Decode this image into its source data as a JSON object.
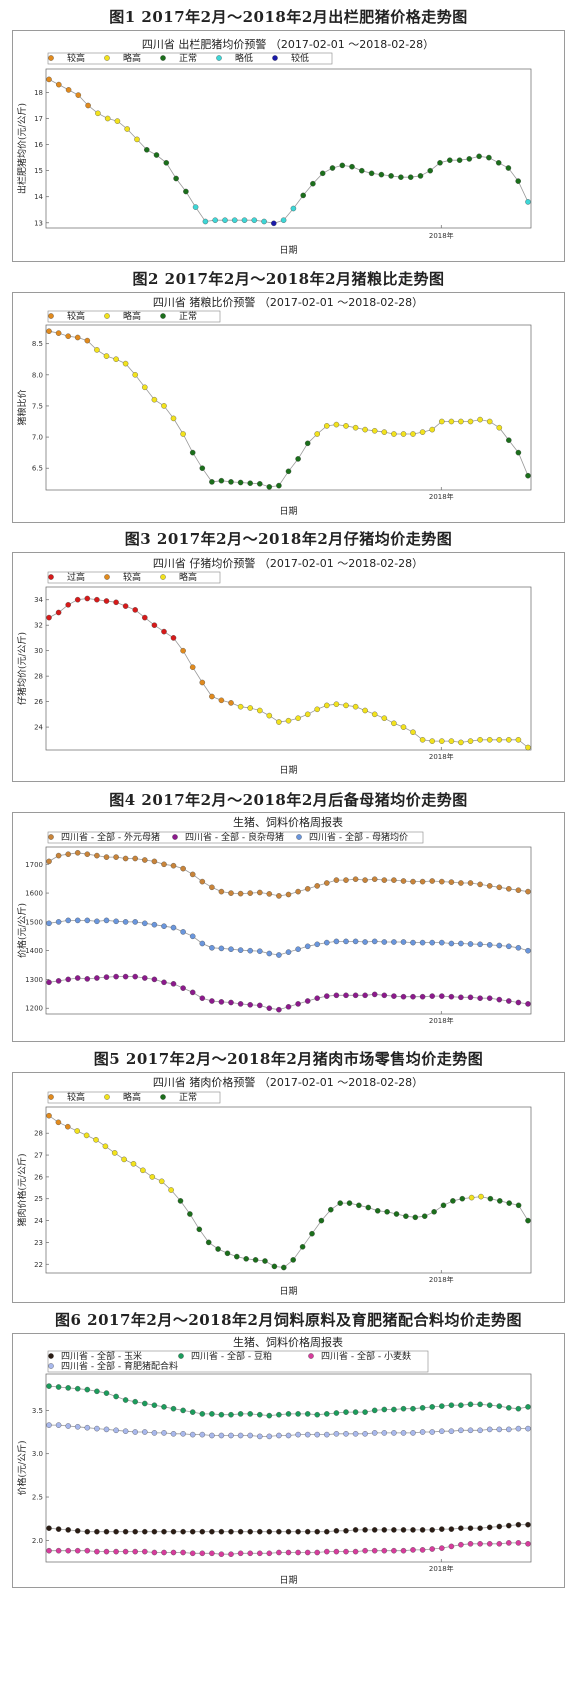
{
  "figures": [
    {
      "label": "图1   2017年2月～2018年2月出栏肥猪价格走势图"
    },
    {
      "label": "图2   2017年2月～2018年2月猪粮比走势图"
    },
    {
      "label": "图3   2017年2月～2018年2月仔猪均价走势图"
    },
    {
      "label": "图4   2017年2月～2018年2月后备母猪均价走势图"
    },
    {
      "label": "图5   2017年2月～2018年2月猪肉市场零售均价走势图"
    },
    {
      "label": "图6   2017年2月～2018年2月饲料原料及育肥猪配合料均价走势图"
    }
  ],
  "colors": {
    "较高": "#e08a1e",
    "略高": "#f2e21e",
    "正常": "#1b6e1b",
    "略低": "#3ed6d6",
    "较低": "#1a1aa8",
    "过高": "#d61a1a"
  },
  "chart_data": [
    {
      "type": "line",
      "title": "四川省 出栏肥猪均价预警 （2017-02-01 ～2018-02-28）",
      "xlabel": "日期",
      "ylabel": "出栏肥猪均价(元/公斤)",
      "x_tick_label": "2018年",
      "ylim": [
        12.8,
        18.9
      ],
      "yticks": [
        13,
        14,
        15,
        16,
        17,
        18
      ],
      "legend": [
        {
          "name": "较高",
          "color": "#e08a1e"
        },
        {
          "name": "略高",
          "color": "#f2e21e"
        },
        {
          "name": "正常",
          "color": "#1b6e1b"
        },
        {
          "name": "略低",
          "color": "#3ed6d6"
        },
        {
          "name": "较低",
          "color": "#1a1aa8"
        }
      ],
      "values": [
        18.5,
        18.3,
        18.1,
        17.9,
        17.5,
        17.2,
        17.0,
        16.9,
        16.6,
        16.2,
        15.8,
        15.6,
        15.3,
        14.7,
        14.2,
        13.6,
        13.05,
        13.1,
        13.1,
        13.1,
        13.1,
        13.1,
        13.05,
        12.98,
        13.1,
        13.55,
        14.05,
        14.5,
        14.9,
        15.1,
        15.2,
        15.15,
        15.0,
        14.9,
        14.85,
        14.8,
        14.75,
        14.75,
        14.8,
        15.0,
        15.3,
        15.4,
        15.4,
        15.45,
        15.55,
        15.5,
        15.3,
        15.1,
        14.6,
        13.8
      ],
      "categories": [
        "较高",
        "较高",
        "较高",
        "较高",
        "较高",
        "略高",
        "略高",
        "略高",
        "略高",
        "略高",
        "正常",
        "正常",
        "正常",
        "正常",
        "正常",
        "略低",
        "略低",
        "略低",
        "略低",
        "略低",
        "略低",
        "略低",
        "略低",
        "较低",
        "略低",
        "略低",
        "正常",
        "正常",
        "正常",
        "正常",
        "正常",
        "正常",
        "正常",
        "正常",
        "正常",
        "正常",
        "正常",
        "正常",
        "正常",
        "正常",
        "正常",
        "正常",
        "正常",
        "正常",
        "正常",
        "正常",
        "正常",
        "正常",
        "正常",
        "略低"
      ]
    },
    {
      "type": "line",
      "title": "四川省 猪粮比价预警 （2017-02-01 ～2018-02-28）",
      "xlabel": "日期",
      "ylabel": "猪粮比价",
      "x_tick_label": "2018年",
      "ylim": [
        6.15,
        8.8
      ],
      "yticks": [
        6.5,
        7.0,
        7.5,
        8.0,
        8.5
      ],
      "legend": [
        {
          "name": "较高",
          "color": "#e08a1e"
        },
        {
          "name": "略高",
          "color": "#f2e21e"
        },
        {
          "name": "正常",
          "color": "#1b6e1b"
        }
      ],
      "values": [
        8.7,
        8.67,
        8.62,
        8.6,
        8.55,
        8.4,
        8.3,
        8.25,
        8.18,
        8.0,
        7.8,
        7.6,
        7.5,
        7.3,
        7.05,
        6.75,
        6.5,
        6.28,
        6.3,
        6.28,
        6.27,
        6.26,
        6.25,
        6.2,
        6.22,
        6.45,
        6.65,
        6.9,
        7.05,
        7.18,
        7.2,
        7.18,
        7.15,
        7.12,
        7.1,
        7.08,
        7.05,
        7.05,
        7.05,
        7.08,
        7.12,
        7.25,
        7.25,
        7.25,
        7.25,
        7.28,
        7.25,
        7.15,
        6.95,
        6.75,
        6.38
      ],
      "categories": [
        "较高",
        "较高",
        "较高",
        "较高",
        "较高",
        "略高",
        "略高",
        "略高",
        "略高",
        "略高",
        "略高",
        "略高",
        "略高",
        "略高",
        "略高",
        "正常",
        "正常",
        "正常",
        "正常",
        "正常",
        "正常",
        "正常",
        "正常",
        "正常",
        "正常",
        "正常",
        "正常",
        "正常",
        "略高",
        "略高",
        "略高",
        "略高",
        "略高",
        "略高",
        "略高",
        "略高",
        "略高",
        "略高",
        "略高",
        "略高",
        "略高",
        "略高",
        "略高",
        "略高",
        "略高",
        "略高",
        "略高",
        "略高",
        "正常",
        "正常",
        "正常"
      ]
    },
    {
      "type": "line",
      "title": "四川省 仔猪均价预警 （2017-02-01 ～2018-02-28）",
      "xlabel": "日期",
      "ylabel": "仔猪均价(元/公斤)",
      "x_tick_label": "2018年",
      "ylim": [
        22.2,
        35.0
      ],
      "yticks": [
        24,
        26,
        28,
        30,
        32,
        34
      ],
      "legend": [
        {
          "name": "过高",
          "color": "#d61a1a"
        },
        {
          "name": "较高",
          "color": "#e08a1e"
        },
        {
          "name": "略高",
          "color": "#f2e21e"
        }
      ],
      "values": [
        32.6,
        33.0,
        33.6,
        34.0,
        34.1,
        34.0,
        33.9,
        33.8,
        33.5,
        33.2,
        32.6,
        32.0,
        31.5,
        31.0,
        30.0,
        28.7,
        27.5,
        26.4,
        26.1,
        25.9,
        25.6,
        25.5,
        25.3,
        24.9,
        24.4,
        24.5,
        24.7,
        25.0,
        25.4,
        25.7,
        25.8,
        25.7,
        25.6,
        25.3,
        25.0,
        24.7,
        24.3,
        24.0,
        23.6,
        23.0,
        22.9,
        22.9,
        22.9,
        22.8,
        22.9,
        23.0,
        23.0,
        23.0,
        23.0,
        23.0,
        22.4
      ],
      "categories": [
        "过高",
        "过高",
        "过高",
        "过高",
        "过高",
        "过高",
        "过高",
        "过高",
        "过高",
        "过高",
        "过高",
        "过高",
        "过高",
        "过高",
        "较高",
        "较高",
        "较高",
        "较高",
        "较高",
        "较高",
        "略高",
        "略高",
        "略高",
        "略高",
        "略高",
        "略高",
        "略高",
        "略高",
        "略高",
        "略高",
        "略高",
        "略高",
        "略高",
        "略高",
        "略高",
        "略高",
        "略高",
        "略高",
        "略高",
        "略高",
        "略高",
        "略高",
        "略高",
        "略高",
        "略高",
        "略高",
        "略高",
        "略高",
        "略高",
        "略高",
        "略高"
      ]
    },
    {
      "type": "line",
      "title": "生猪、饲料价格周报表",
      "xlabel": "",
      "ylabel": "价格(元/公斤)",
      "x_tick_label": "2018年",
      "ylim": [
        1180,
        1760
      ],
      "yticks": [
        1200,
        1300,
        1400,
        1500,
        1600,
        1700
      ],
      "series": [
        {
          "name": "四川省 - 全部 - 外元母猪",
          "color": "#c8843a",
          "values": [
            1710,
            1730,
            1735,
            1740,
            1735,
            1730,
            1725,
            1725,
            1720,
            1720,
            1715,
            1710,
            1700,
            1695,
            1685,
            1665,
            1640,
            1620,
            1605,
            1600,
            1598,
            1600,
            1602,
            1597,
            1590,
            1595,
            1605,
            1615,
            1625,
            1635,
            1645,
            1645,
            1648,
            1645,
            1648,
            1645,
            1645,
            1642,
            1640,
            1640,
            1642,
            1640,
            1638,
            1635,
            1635,
            1630,
            1625,
            1620,
            1615,
            1610,
            1605
          ]
        },
        {
          "name": "四川省 - 全部 - 良杂母猪",
          "color": "#8c1a8c",
          "values": [
            1290,
            1295,
            1300,
            1305,
            1302,
            1305,
            1308,
            1310,
            1310,
            1310,
            1305,
            1300,
            1290,
            1285,
            1270,
            1255,
            1235,
            1225,
            1222,
            1220,
            1215,
            1212,
            1210,
            1200,
            1195,
            1205,
            1215,
            1225,
            1235,
            1242,
            1245,
            1245,
            1245,
            1245,
            1248,
            1245,
            1242,
            1240,
            1240,
            1240,
            1242,
            1242,
            1240,
            1238,
            1238,
            1235,
            1235,
            1230,
            1225,
            1220,
            1215
          ]
        },
        {
          "name": "四川省 - 全部 - 母猪均价",
          "color": "#6a96dc",
          "values": [
            1495,
            1500,
            1505,
            1505,
            1505,
            1502,
            1505,
            1502,
            1500,
            1500,
            1495,
            1490,
            1485,
            1480,
            1465,
            1450,
            1425,
            1410,
            1408,
            1405,
            1402,
            1400,
            1398,
            1390,
            1385,
            1395,
            1405,
            1415,
            1422,
            1428,
            1432,
            1432,
            1432,
            1430,
            1432,
            1430,
            1430,
            1430,
            1428,
            1428,
            1428,
            1428,
            1425,
            1425,
            1423,
            1422,
            1420,
            1418,
            1415,
            1410,
            1400
          ]
        }
      ]
    },
    {
      "type": "line",
      "title": "四川省 猪肉价格预警 （2017-02-01 ～2018-02-28）",
      "xlabel": "日期",
      "ylabel": "猪肉价格(元/公斤)",
      "x_tick_label": "2018年",
      "ylim": [
        21.6,
        29.2
      ],
      "yticks": [
        22,
        23,
        24,
        25,
        26,
        27,
        28
      ],
      "legend": [
        {
          "name": "较高",
          "color": "#e08a1e"
        },
        {
          "name": "略高",
          "color": "#f2e21e"
        },
        {
          "name": "正常",
          "color": "#1b6e1b"
        }
      ],
      "values": [
        28.8,
        28.5,
        28.3,
        28.1,
        27.9,
        27.7,
        27.4,
        27.1,
        26.8,
        26.6,
        26.3,
        26.0,
        25.8,
        25.4,
        24.9,
        24.3,
        23.6,
        23.0,
        22.7,
        22.5,
        22.35,
        22.25,
        22.2,
        22.15,
        21.9,
        21.85,
        22.2,
        22.8,
        23.4,
        24.0,
        24.5,
        24.8,
        24.8,
        24.7,
        24.6,
        24.45,
        24.4,
        24.3,
        24.2,
        24.15,
        24.2,
        24.4,
        24.7,
        24.9,
        25.0,
        25.05,
        25.1,
        25.0,
        24.9,
        24.8,
        24.7,
        24.0
      ],
      "categories": [
        "较高",
        "较高",
        "较高",
        "略高",
        "略高",
        "略高",
        "略高",
        "略高",
        "略高",
        "略高",
        "略高",
        "略高",
        "略高",
        "略高",
        "正常",
        "正常",
        "正常",
        "正常",
        "正常",
        "正常",
        "正常",
        "正常",
        "正常",
        "正常",
        "正常",
        "正常",
        "正常",
        "正常",
        "正常",
        "正常",
        "正常",
        "正常",
        "正常",
        "正常",
        "正常",
        "正常",
        "正常",
        "正常",
        "正常",
        "正常",
        "正常",
        "正常",
        "正常",
        "正常",
        "正常",
        "略高",
        "略高",
        "正常",
        "正常",
        "正常",
        "正常",
        "正常"
      ]
    },
    {
      "type": "line",
      "title": "生猪、饲料价格周报表",
      "xlabel": "日期",
      "ylabel": "价格(元/公斤)",
      "x_tick_label": "2018年",
      "ylim": [
        1.75,
        3.92
      ],
      "yticks": [
        2.0,
        2.5,
        3.0,
        3.5
      ],
      "series": [
        {
          "name": "四川省 - 全部 - 玉米",
          "color": "#2a1c14",
          "values": [
            2.14,
            2.13,
            2.12,
            2.11,
            2.1,
            2.1,
            2.1,
            2.1,
            2.1,
            2.1,
            2.1,
            2.1,
            2.1,
            2.1,
            2.1,
            2.1,
            2.1,
            2.1,
            2.1,
            2.1,
            2.1,
            2.1,
            2.1,
            2.1,
            2.1,
            2.1,
            2.1,
            2.1,
            2.1,
            2.1,
            2.11,
            2.11,
            2.12,
            2.12,
            2.12,
            2.12,
            2.12,
            2.12,
            2.12,
            2.12,
            2.12,
            2.13,
            2.13,
            2.14,
            2.14,
            2.14,
            2.15,
            2.16,
            2.17,
            2.18,
            2.18
          ]
        },
        {
          "name": "四川省 - 全部 - 豆粕",
          "color": "#1c9c5c",
          "values": [
            3.78,
            3.77,
            3.76,
            3.75,
            3.74,
            3.72,
            3.7,
            3.66,
            3.62,
            3.6,
            3.58,
            3.56,
            3.54,
            3.52,
            3.5,
            3.48,
            3.46,
            3.46,
            3.45,
            3.45,
            3.46,
            3.46,
            3.45,
            3.44,
            3.45,
            3.46,
            3.46,
            3.46,
            3.45,
            3.46,
            3.47,
            3.48,
            3.48,
            3.48,
            3.5,
            3.51,
            3.51,
            3.52,
            3.52,
            3.53,
            3.54,
            3.55,
            3.56,
            3.56,
            3.57,
            3.57,
            3.56,
            3.55,
            3.53,
            3.52,
            3.54
          ]
        },
        {
          "name": "四川省 - 全部 - 小麦麸",
          "color": "#d63c9c",
          "values": [
            1.88,
            1.88,
            1.88,
            1.88,
            1.88,
            1.87,
            1.87,
            1.87,
            1.87,
            1.87,
            1.87,
            1.86,
            1.86,
            1.86,
            1.86,
            1.85,
            1.85,
            1.85,
            1.84,
            1.84,
            1.85,
            1.85,
            1.85,
            1.85,
            1.86,
            1.86,
            1.86,
            1.86,
            1.86,
            1.87,
            1.87,
            1.87,
            1.87,
            1.88,
            1.88,
            1.88,
            1.88,
            1.88,
            1.89,
            1.89,
            1.9,
            1.91,
            1.93,
            1.95,
            1.96,
            1.96,
            1.96,
            1.96,
            1.97,
            1.97,
            1.96
          ]
        },
        {
          "name": "四川省 - 全部 - 育肥猪配合料",
          "color": "#a8b8ec",
          "values": [
            3.33,
            3.33,
            3.32,
            3.31,
            3.3,
            3.29,
            3.28,
            3.27,
            3.26,
            3.25,
            3.25,
            3.24,
            3.24,
            3.23,
            3.23,
            3.22,
            3.22,
            3.21,
            3.21,
            3.21,
            3.21,
            3.21,
            3.2,
            3.2,
            3.21,
            3.21,
            3.22,
            3.22,
            3.22,
            3.22,
            3.23,
            3.23,
            3.23,
            3.23,
            3.24,
            3.24,
            3.24,
            3.24,
            3.24,
            3.25,
            3.25,
            3.26,
            3.26,
            3.27,
            3.27,
            3.27,
            3.28,
            3.28,
            3.28,
            3.29,
            3.29
          ]
        }
      ]
    }
  ]
}
